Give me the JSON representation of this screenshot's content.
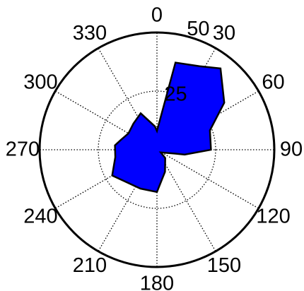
{
  "chart_data": {
    "type": "polar-area",
    "theta_zero_location": "top",
    "theta_direction": "clockwise",
    "angle_ticks": [
      "0",
      "30",
      "60",
      "90",
      "120",
      "150",
      "180",
      "210",
      "240",
      "270",
      "300",
      "330"
    ],
    "radial_ticks": [
      "25",
      "50"
    ],
    "r_max": 50,
    "fill_color": "#0000ff",
    "outline_color": "#000000",
    "grid": "dotted",
    "series": [
      {
        "points": [
          {
            "theta": 0,
            "r": 8
          },
          {
            "theta": 12,
            "r": 38
          },
          {
            "theta": 27,
            "r": 40
          },
          {
            "theta": 38,
            "r": 44
          },
          {
            "theta": 55,
            "r": 35
          },
          {
            "theta": 70,
            "r": 24
          },
          {
            "theta": 90,
            "r": 23
          },
          {
            "theta": 100,
            "r": 12
          },
          {
            "theta": 102,
            "r": 8
          },
          {
            "theta": 125,
            "r": 2
          },
          {
            "theta": 135,
            "r": 5
          },
          {
            "theta": 160,
            "r": 10
          },
          {
            "theta": 180,
            "r": 18
          },
          {
            "theta": 203,
            "r": 18
          },
          {
            "theta": 240,
            "r": 22
          },
          {
            "theta": 260,
            "r": 18
          },
          {
            "theta": 276,
            "r": 18
          },
          {
            "theta": 285,
            "r": 16
          },
          {
            "theta": 300,
            "r": 14
          },
          {
            "theta": 318,
            "r": 15
          },
          {
            "theta": 336,
            "r": 17
          },
          {
            "theta": 355,
            "r": 10
          }
        ]
      }
    ]
  }
}
